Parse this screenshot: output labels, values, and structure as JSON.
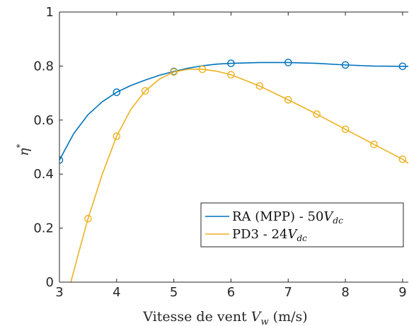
{
  "chart_data": {
    "type": "line",
    "title": "",
    "xlabel": {
      "prefix": "Vitesse de vent ",
      "var": "V",
      "sub": "w",
      "suffix": " (m/s)"
    },
    "ylabel": {
      "var": "η",
      "sup": "*"
    },
    "xlim": [
      3,
      9.1
    ],
    "ylim": [
      0,
      1
    ],
    "xticks": [
      3,
      4,
      5,
      6,
      7,
      8,
      9
    ],
    "yticks": [
      0,
      0.2,
      0.4,
      0.6,
      0.8,
      1
    ],
    "xtick_labels": [
      "3",
      "4",
      "5",
      "6",
      "7",
      "8",
      "9"
    ],
    "ytick_labels": [
      "0",
      "0.2",
      "0.4",
      "0.6",
      "0.8",
      "1"
    ],
    "grid": false,
    "legend_position": "lower-right",
    "series": [
      {
        "name": "RA (MPP) - 50V_dc",
        "legend": {
          "main": "RA (MPP) - 50",
          "var": "V",
          "sub": "dc"
        },
        "color": "#0072BD",
        "marker": "circle",
        "markers": [
          {
            "x": 3,
            "y": 0.452
          },
          {
            "x": 4,
            "y": 0.703
          },
          {
            "x": 5,
            "y": 0.78
          },
          {
            "x": 6,
            "y": 0.81
          },
          {
            "x": 7,
            "y": 0.813
          },
          {
            "x": 8,
            "y": 0.804
          },
          {
            "x": 9,
            "y": 0.799
          }
        ],
        "curve": [
          {
            "x": 3.0,
            "y": 0.452
          },
          {
            "x": 3.25,
            "y": 0.55
          },
          {
            "x": 3.5,
            "y": 0.62
          },
          {
            "x": 3.75,
            "y": 0.668
          },
          {
            "x": 4.0,
            "y": 0.703
          },
          {
            "x": 4.25,
            "y": 0.728
          },
          {
            "x": 4.5,
            "y": 0.748
          },
          {
            "x": 4.75,
            "y": 0.766
          },
          {
            "x": 5.0,
            "y": 0.78
          },
          {
            "x": 5.25,
            "y": 0.792
          },
          {
            "x": 5.5,
            "y": 0.801
          },
          {
            "x": 5.75,
            "y": 0.807
          },
          {
            "x": 6.0,
            "y": 0.81
          },
          {
            "x": 6.5,
            "y": 0.813
          },
          {
            "x": 7.0,
            "y": 0.813
          },
          {
            "x": 7.5,
            "y": 0.81
          },
          {
            "x": 8.0,
            "y": 0.804
          },
          {
            "x": 8.5,
            "y": 0.8
          },
          {
            "x": 9.0,
            "y": 0.799
          },
          {
            "x": 9.1,
            "y": 0.799
          }
        ]
      },
      {
        "name": "PD3 - 24V_dc",
        "legend": {
          "main": "PD3 - 24",
          "var": "V",
          "sub": "dc"
        },
        "color": "#EDB120",
        "marker": "circle",
        "markers": [
          {
            "x": 3.5,
            "y": 0.235
          },
          {
            "x": 4,
            "y": 0.54
          },
          {
            "x": 4.5,
            "y": 0.708
          },
          {
            "x": 5,
            "y": 0.778
          },
          {
            "x": 5.5,
            "y": 0.788
          },
          {
            "x": 6,
            "y": 0.768
          },
          {
            "x": 6.5,
            "y": 0.726
          },
          {
            "x": 7,
            "y": 0.675
          },
          {
            "x": 7.5,
            "y": 0.622
          },
          {
            "x": 8,
            "y": 0.566
          },
          {
            "x": 8.5,
            "y": 0.51
          },
          {
            "x": 9,
            "y": 0.455
          }
        ],
        "curve": [
          {
            "x": 3.2,
            "y": 0.0
          },
          {
            "x": 3.35,
            "y": 0.12
          },
          {
            "x": 3.5,
            "y": 0.235
          },
          {
            "x": 3.75,
            "y": 0.4
          },
          {
            "x": 4.0,
            "y": 0.54
          },
          {
            "x": 4.25,
            "y": 0.64
          },
          {
            "x": 4.5,
            "y": 0.708
          },
          {
            "x": 4.75,
            "y": 0.752
          },
          {
            "x": 5.0,
            "y": 0.778
          },
          {
            "x": 5.25,
            "y": 0.788
          },
          {
            "x": 5.5,
            "y": 0.788
          },
          {
            "x": 5.75,
            "y": 0.781
          },
          {
            "x": 6.0,
            "y": 0.768
          },
          {
            "x": 6.5,
            "y": 0.726
          },
          {
            "x": 7.0,
            "y": 0.675
          },
          {
            "x": 7.5,
            "y": 0.622
          },
          {
            "x": 8.0,
            "y": 0.566
          },
          {
            "x": 8.5,
            "y": 0.51
          },
          {
            "x": 9.0,
            "y": 0.455
          },
          {
            "x": 9.1,
            "y": 0.44
          }
        ]
      }
    ]
  }
}
